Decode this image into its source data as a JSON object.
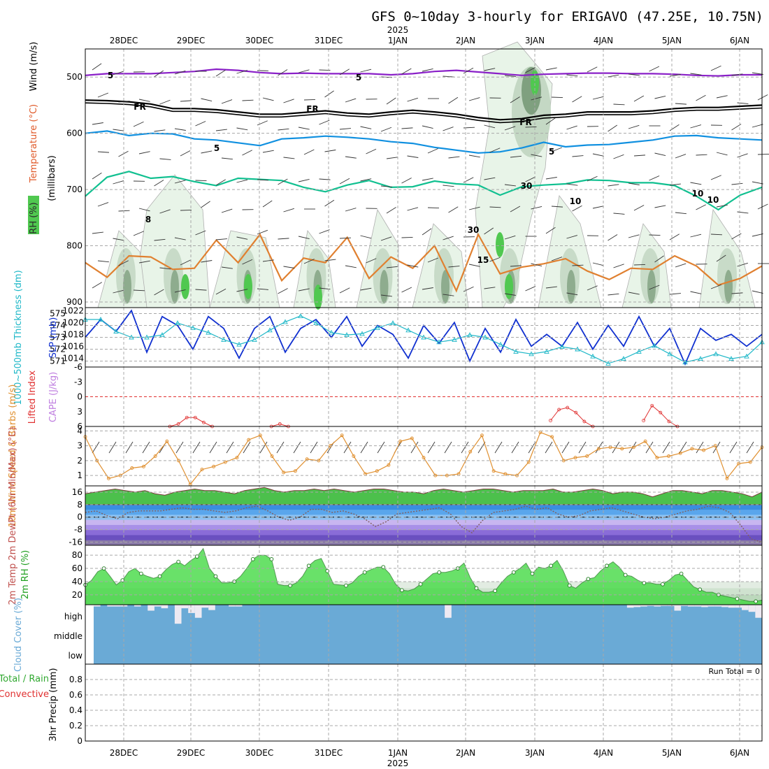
{
  "title": "GFS 0~10day 3-hourly for ERIGAVO (47.25E, 10.75N)",
  "year_label": "2025",
  "date_labels": [
    "28DEC",
    "29DEC",
    "30DEC",
    "31DEC",
    "1JAN",
    "2JAN",
    "3JAN",
    "4JAN",
    "5JAN",
    "6JAN"
  ],
  "run_total": "Run Total = 0",
  "colors": {
    "wind_500": "#8a20c8",
    "freezing": "#000000",
    "temp_600": "#1090e0",
    "temp_700": "#10c090",
    "temp_800": "#e08030",
    "temp_warm": "#e01070",
    "rh_light": "#e8f4e8",
    "rh_mid": "#c4d8c4",
    "rh_dark": "#7fa07f",
    "rh_bright": "#50c850",
    "slp": "#1030d0",
    "thickness": "#20b8c8",
    "lifted": "#e03030",
    "wind_speed": "#e09030",
    "cloud": "#6aaad6"
  },
  "chart_data": [
    {
      "panel": "upper-air",
      "type": "contour",
      "ylabel": "(millibars)",
      "side_labels": [
        "RH (%)",
        "Temperature (°C)",
        "Wind (m/s)"
      ],
      "yticks": [
        500,
        600,
        700,
        800,
        900
      ],
      "contour_labels": [
        "5",
        "5",
        "FR",
        "FR",
        "FR",
        "5",
        "5",
        "10",
        "10",
        "8",
        "15",
        "30",
        "30",
        "10"
      ],
      "isolines": [
        {
          "name": "wind-5ms",
          "color_key": "wind_500",
          "values_mb": [
            497,
            494,
            494,
            494,
            492,
            490,
            486,
            488,
            492,
            494,
            493,
            494,
            494,
            494,
            496,
            494,
            490,
            488,
            491,
            494,
            497,
            495,
            494,
            493,
            493,
            494,
            494,
            495,
            497,
            498,
            496,
            496
          ]
        },
        {
          "name": "freezing-level",
          "color_key": "freezing",
          "values_mb": [
            541,
            542,
            544,
            548,
            556,
            556,
            558,
            562,
            566,
            566,
            563,
            560,
            564,
            566,
            562,
            559,
            562,
            566,
            572,
            576,
            574,
            568,
            566,
            562,
            562,
            562,
            560,
            556,
            554,
            554,
            552,
            550
          ]
        },
        {
          "name": "temp-5C",
          "color_key": "temp_600",
          "values_mb": [
            600,
            596,
            604,
            600,
            601,
            610,
            612,
            617,
            622,
            610,
            608,
            605,
            607,
            610,
            615,
            618,
            625,
            630,
            635,
            633,
            626,
            616,
            624,
            621,
            620,
            616,
            612,
            605,
            604,
            608,
            610,
            612
          ]
        },
        {
          "name": "temp-10C",
          "color_key": "temp_700",
          "values_mb": [
            712,
            678,
            668,
            680,
            677,
            686,
            693,
            680,
            682,
            684,
            696,
            704,
            692,
            684,
            696,
            695,
            685,
            690,
            692,
            710,
            695,
            692,
            690,
            683,
            684,
            688,
            688,
            693,
            712,
            736,
            710,
            696
          ]
        },
        {
          "name": "temp-15C",
          "color_key": "temp_800",
          "values_mb": [
            830,
            856,
            818,
            820,
            842,
            840,
            790,
            830,
            780,
            862,
            822,
            830,
            785,
            858,
            820,
            840,
            800,
            880,
            780,
            850,
            838,
            832,
            823,
            845,
            860,
            840,
            842,
            818,
            836,
            870,
            858,
            836
          ]
        }
      ]
    },
    {
      "panel": "slp-thickness",
      "type": "line",
      "ylabel_left": "1000~500mb Thickness (dm)",
      "ylabel_right": "SLP (mb)",
      "thickness_ticks": [
        571,
        572,
        573,
        574,
        575
      ],
      "slp_ticks": [
        1014,
        1016,
        1018,
        1020,
        1022
      ],
      "ylim_thickness": [
        570.5,
        575.5
      ],
      "ylim_slp": [
        1012.5,
        1022.5
      ],
      "series": [
        {
          "name": "SLP",
          "color_key": "slp",
          "values": [
            1017.5,
            1020.5,
            1018.5,
            1022,
            1015,
            1021,
            1019.5,
            1015.5,
            1021,
            1019,
            1014,
            1019,
            1021,
            1015,
            1019,
            1020.5,
            1017.5,
            1021,
            1016,
            1019.5,
            1018,
            1014,
            1019.5,
            1016.5,
            1020,
            1013.5,
            1019,
            1015,
            1020.5,
            1016,
            1018,
            1016,
            1020,
            1015.5,
            1019.5,
            1016,
            1021,
            1016,
            1019,
            1013,
            1019,
            1017,
            1018,
            1016,
            1018
          ]
        },
        {
          "name": "Thickness",
          "color_key": "thickness",
          "values": [
            574.5,
            574.5,
            573.5,
            573,
            573,
            573.2,
            574.2,
            573.8,
            573.4,
            572.8,
            572.4,
            572.8,
            573.6,
            574.3,
            574.8,
            574.2,
            573.4,
            573.2,
            573.3,
            573.8,
            574.2,
            573.6,
            573,
            572.6,
            572.8,
            573.2,
            573,
            572.4,
            571.8,
            571.6,
            571.8,
            572.2,
            572,
            571.4,
            570.8,
            571.2,
            571.8,
            572.3,
            571.6,
            570.9,
            571.2,
            571.6,
            571.2,
            571.4,
            572.6
          ]
        }
      ]
    },
    {
      "panel": "stability",
      "type": "line",
      "ylabel_left": "Lifted Index",
      "ylabel_right": "CAPE (J/kg)",
      "yticks": [
        "-6",
        "-3",
        "0",
        "3",
        "6"
      ],
      "ylim": [
        -6,
        6
      ],
      "series": [
        {
          "name": "Lifted Index",
          "color_key": "lifted",
          "x_index": [
            10,
            11,
            12,
            13,
            14,
            15,
            22,
            23,
            24,
            55,
            56,
            57,
            58,
            59,
            60,
            66,
            67,
            68,
            69,
            70
          ],
          "values": [
            6,
            5.5,
            4.2,
            4.2,
            5.2,
            6,
            6,
            5.5,
            6,
            4.8,
            2.6,
            2.2,
            3.2,
            5,
            6,
            4.8,
            1.8,
            3.2,
            5,
            6
          ]
        }
      ]
    },
    {
      "panel": "wind-10m",
      "type": "line",
      "ylabel": "10m Wind Speed & Barbs (m/s)",
      "yticks": [
        1,
        2,
        3,
        4
      ],
      "ylim": [
        0.3,
        4.3
      ],
      "series": [
        {
          "name": "10m Wind Speed",
          "color_key": "wind_speed",
          "values": [
            3.6,
            2.0,
            0.8,
            1.0,
            1.5,
            1.6,
            2.3,
            3.3,
            2.0,
            0.4,
            1.4,
            1.6,
            1.9,
            2.2,
            3.4,
            3.7,
            2.3,
            1.2,
            1.3,
            2.1,
            2.0,
            3.0,
            3.7,
            2.3,
            1.1,
            1.3,
            1.7,
            3.3,
            3.5,
            2.2,
            1.0,
            1.0,
            1.1,
            2.6,
            3.7,
            1.3,
            1.1,
            1.0,
            1.9,
            3.9,
            3.6,
            2.0,
            2.2,
            2.3,
            2.8,
            2.9,
            2.8,
            2.9,
            3.3,
            2.2,
            2.3,
            2.5,
            2.8,
            2.7,
            3.0,
            0.8,
            1.8,
            1.9,
            2.9
          ]
        }
      ]
    },
    {
      "panel": "temperature-2m",
      "type": "area",
      "ylabel": "2m Temp 2m DewPt (6hr Min/Max) (°C)",
      "yticks": [
        -16,
        -8,
        0,
        8,
        16
      ],
      "ylim": [
        -18,
        20
      ],
      "series": [
        {
          "name": "2m Temp",
          "values": [
            15,
            16,
            17,
            18,
            17,
            16,
            17,
            15,
            14,
            16,
            17,
            18,
            17,
            17,
            16,
            15,
            17,
            18,
            19,
            17,
            16,
            17,
            17,
            18,
            17,
            18,
            17,
            16,
            17,
            18,
            18,
            17,
            16,
            16,
            15,
            17,
            18,
            17,
            16,
            17,
            18,
            18,
            17,
            16,
            17,
            17,
            17,
            18,
            16,
            16,
            17,
            18,
            17,
            15,
            16,
            16,
            15,
            13,
            15,
            17,
            17,
            16,
            15,
            17,
            17,
            16,
            15,
            13,
            16
          ]
        },
        {
          "name": "2m DewPt",
          "values": [
            3,
            4,
            1,
            -1,
            3,
            4,
            4,
            4,
            5,
            6,
            5,
            5,
            4,
            3,
            4,
            6,
            7,
            4,
            0,
            -2,
            0,
            5,
            5,
            3,
            4,
            2,
            -1,
            -6,
            -3,
            2,
            3,
            4,
            5,
            6,
            2,
            -6,
            -10,
            -2,
            3,
            4,
            5,
            7,
            5,
            6,
            2,
            0,
            1,
            4,
            5,
            6,
            4,
            2,
            0,
            -1,
            0,
            2,
            4,
            5,
            7,
            6,
            3,
            -5,
            -14,
            -16
          ]
        }
      ]
    },
    {
      "panel": "rh-2m",
      "type": "area",
      "ylabel": "2m RH (%)",
      "yticks": [
        20,
        40,
        60,
        80
      ],
      "ylim": [
        5,
        95
      ],
      "series": [
        {
          "name": "2m RH",
          "values": [
            35,
            42,
            55,
            60,
            48,
            35,
            42,
            55,
            60,
            52,
            48,
            45,
            48,
            58,
            66,
            70,
            64,
            72,
            78,
            90,
            60,
            48,
            38,
            38,
            40,
            48,
            60,
            74,
            80,
            80,
            74,
            36,
            34,
            34,
            38,
            48,
            64,
            72,
            75,
            56,
            36,
            35,
            34,
            38,
            48,
            54,
            58,
            62,
            62,
            52,
            36,
            27,
            26,
            29,
            36,
            44,
            52,
            54,
            54,
            56,
            60,
            68,
            46,
            30,
            24,
            24,
            26,
            38,
            48,
            54,
            60,
            68,
            52,
            62,
            60,
            64,
            72,
            56,
            34,
            30,
            38,
            44,
            46,
            56,
            64,
            70,
            62,
            50,
            48,
            42,
            38,
            38,
            36,
            36,
            42,
            50,
            52,
            42,
            32,
            28,
            24,
            24,
            20,
            18,
            16,
            14,
            12,
            10,
            10,
            12
          ]
        }
      ]
    },
    {
      "panel": "cloud-cover",
      "type": "bar",
      "ylabel": "Cloud Cover (%)",
      "ylevels": [
        "high",
        "middle",
        "low"
      ],
      "series": [
        {
          "name": "high cloud gaps",
          "values": [
            0.03,
            0,
            0.03,
            0.03,
            0.03,
            0,
            0.03,
            0,
            0.1,
            0.03,
            0.06,
            0,
            0.32,
            0.06,
            0.14,
            0.22,
            0.05,
            0.09,
            0,
            0,
            0.03,
            0.03,
            0,
            0,
            0,
            0,
            0,
            0,
            0,
            0,
            0,
            0,
            0,
            0,
            0,
            0,
            0,
            0,
            0,
            0,
            0,
            0,
            0,
            0,
            0,
            0,
            0,
            0,
            0,
            0,
            0,
            0,
            0.22,
            0,
            0,
            0,
            0,
            0,
            0,
            0,
            0,
            0,
            0,
            0,
            0,
            0,
            0,
            0,
            0,
            0,
            0,
            0,
            0,
            0,
            0,
            0,
            0,
            0,
            0,
            0.05,
            0.04,
            0.03,
            0.02,
            0.03,
            0.02,
            0.02,
            0.1,
            0.02,
            0.03,
            0.03,
            0.04,
            0.03,
            0.03,
            0.04,
            0.05,
            0.05,
            0.09,
            0.12,
            0.22
          ]
        }
      ]
    },
    {
      "panel": "precipitation",
      "type": "bar",
      "ylabel": "3hr Precip (mm)",
      "side_labels": [
        "Total / Rain",
        "Convective"
      ],
      "yticks": [
        "0",
        "0.2",
        "0.4",
        "0.6",
        "0.8"
      ],
      "ylim": [
        0,
        1
      ],
      "series": [
        {
          "name": "3hr Precip",
          "values": [
            0,
            0,
            0,
            0,
            0,
            0,
            0,
            0,
            0,
            0,
            0,
            0,
            0,
            0,
            0,
            0,
            0,
            0,
            0,
            0
          ]
        }
      ]
    }
  ]
}
